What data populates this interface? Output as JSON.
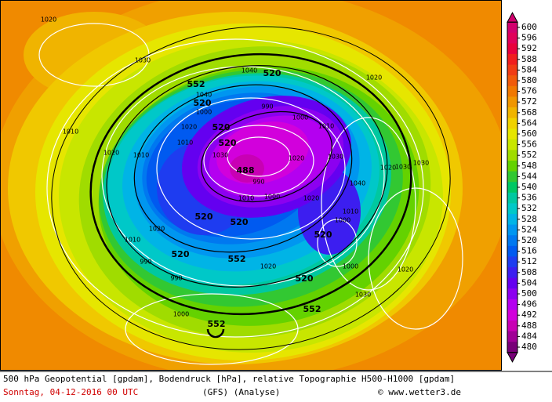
{
  "colorbar": {
    "ticks": [
      600,
      596,
      592,
      588,
      584,
      580,
      576,
      572,
      568,
      564,
      560,
      556,
      552,
      548,
      544,
      540,
      536,
      532,
      528,
      524,
      520,
      516,
      512,
      508,
      504,
      500,
      496,
      492,
      488,
      484,
      480
    ],
    "colors": [
      "#d2006e",
      "#e0005a",
      "#e8003c",
      "#f01e1e",
      "#f03c14",
      "#f05a0a",
      "#f07800",
      "#f09600",
      "#f0b400",
      "#f0d200",
      "#e6e600",
      "#c8e600",
      "#a0dc00",
      "#64d200",
      "#32c832",
      "#00c864",
      "#00c8a0",
      "#00c8c8",
      "#00b4e6",
      "#0096f0",
      "#0078f0",
      "#005af0",
      "#1e3cf0",
      "#3c1ef0",
      "#6400f0",
      "#8c00f0",
      "#b400f0",
      "#d200dc",
      "#c800b4",
      "#a00096",
      "#780078"
    ]
  },
  "geopotential_labels": [
    "552",
    "520",
    "520",
    "520",
    "520",
    "488",
    "520",
    "520",
    "520",
    "520",
    "552",
    "520",
    "552",
    "552"
  ],
  "pressure_labels": [
    "1020",
    "1030",
    "1040",
    "990",
    "1000",
    "1010",
    "1040",
    "1000",
    "1010",
    "1020",
    "1030",
    "1020",
    "1030",
    "1040",
    "1020",
    "1010",
    "1000",
    "1020",
    "1030",
    "1030",
    "1020",
    "1020",
    "1010",
    "1010",
    "990",
    "1000",
    "1010",
    "1020",
    "1010",
    "990",
    "990",
    "1000",
    "1020",
    "1030",
    "1000",
    "1020"
  ],
  "footer": {
    "description": "500 hPa Geopotential [gpdam], Bodendruck [hPa], relative Topographie H500-H1000 [gpdam]",
    "date": "Sonntag, 04-12-2016  00 UTC",
    "model": "(GFS)  (Analyse)",
    "copyright": "© www.wetter3.de"
  }
}
